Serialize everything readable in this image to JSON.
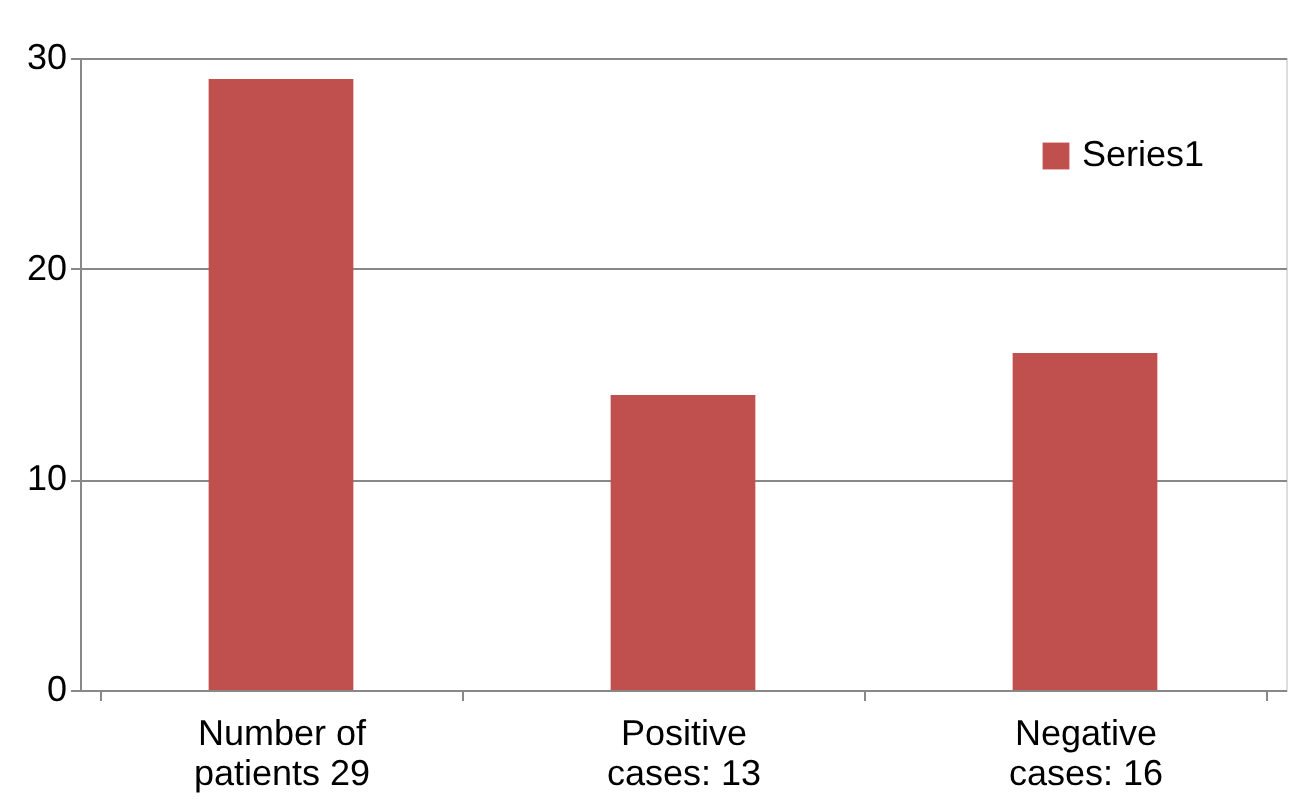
{
  "chart_data": {
    "type": "bar",
    "categories": [
      "Number of patients 29",
      "Positive cases: 13",
      "Negative cases: 16"
    ],
    "series": [
      {
        "name": "Series1",
        "color": "#c0504d",
        "values": [
          29,
          14,
          16
        ]
      }
    ],
    "ylim": [
      0,
      30
    ],
    "yticks": [
      0,
      10,
      20,
      30
    ],
    "grid": "y",
    "legend": "top right"
  }
}
